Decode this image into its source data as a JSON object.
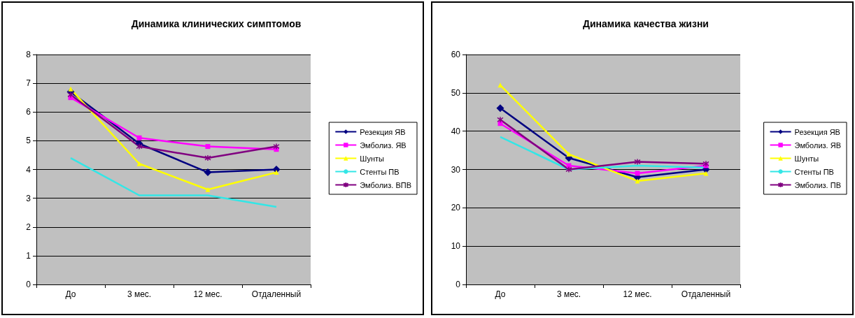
{
  "chart_data": [
    {
      "type": "line",
      "title": "Динамика клинических симптомов",
      "categories": [
        "До",
        "3 мес.",
        "12 мес.",
        "Отдаленный"
      ],
      "series": [
        {
          "name": "Резекция ЯВ",
          "color": "#000080",
          "marker": "diamond",
          "values": [
            6.7,
            4.9,
            3.9,
            4.0
          ]
        },
        {
          "name": "Эмболиз. ЯВ",
          "color": "#ff00ff",
          "marker": "square",
          "values": [
            6.5,
            5.1,
            4.8,
            4.7
          ]
        },
        {
          "name": "Шунты",
          "color": "#ffff00",
          "marker": "triangle",
          "values": [
            6.8,
            4.2,
            3.3,
            3.9
          ]
        },
        {
          "name": "Стенты ПВ",
          "color": "#33e6e6",
          "marker": "none",
          "values": [
            4.4,
            3.1,
            3.1,
            2.7
          ]
        },
        {
          "name": "Эмболиз. ВПВ",
          "color": "#800080",
          "marker": "cross",
          "values": [
            6.6,
            4.8,
            4.4,
            4.8
          ]
        }
      ],
      "ylim": [
        0,
        8
      ],
      "yticks": [
        0,
        1,
        2,
        3,
        4,
        5,
        6,
        7,
        8
      ],
      "grid": "y",
      "legend": "right"
    },
    {
      "type": "line",
      "title": "Динамика качества жизни",
      "categories": [
        "До",
        "3 мес.",
        "12 мес.",
        "Отдаленный"
      ],
      "series": [
        {
          "name": "Резекция ЯВ",
          "color": "#000080",
          "marker": "diamond",
          "values": [
            46,
            33,
            28,
            30
          ]
        },
        {
          "name": "Эмболиз. ЯВ",
          "color": "#ff00ff",
          "marker": "square",
          "values": [
            42,
            31,
            29,
            31
          ]
        },
        {
          "name": "Шунты",
          "color": "#ffff00",
          "marker": "triangle",
          "values": [
            52,
            34,
            27,
            29
          ]
        },
        {
          "name": "Стенты ПВ",
          "color": "#33e6e6",
          "marker": "none",
          "values": [
            38.5,
            30,
            31,
            30.5
          ]
        },
        {
          "name": "Эмболиз. ПВ",
          "color": "#800080",
          "marker": "cross",
          "values": [
            43,
            30,
            32,
            31.5
          ]
        }
      ],
      "ylim": [
        0,
        60
      ],
      "yticks": [
        0,
        10,
        20,
        30,
        40,
        50,
        60
      ],
      "grid": "y",
      "legend": "right"
    }
  ]
}
